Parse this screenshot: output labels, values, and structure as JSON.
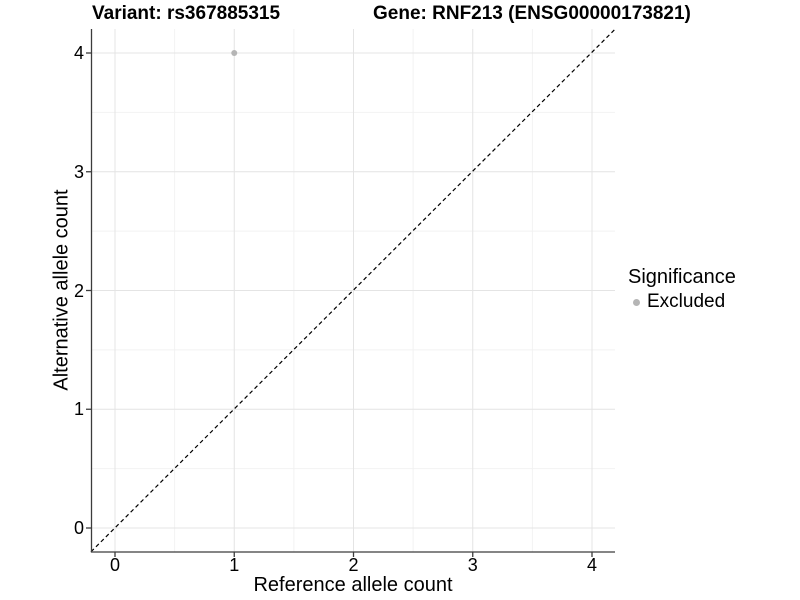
{
  "figure": {
    "title_variant": "Variant: rs367885315",
    "title_gene": "Gene: RNF213 (ENSG00000173821)"
  },
  "axes": {
    "x": {
      "title": "Reference allele count",
      "ticks": [
        "0",
        "1",
        "2",
        "3",
        "4"
      ]
    },
    "y": {
      "title": "Alternative allele count",
      "ticks": [
        "0",
        "1",
        "2",
        "3",
        "4"
      ]
    }
  },
  "legend": {
    "title": "Significance",
    "items": [
      {
        "label": "Excluded",
        "color": "#b5b5b5"
      }
    ]
  },
  "colors": {
    "point": "#b5b5b5",
    "grid_major": "#e4e4e4",
    "grid_minor": "#f2f2f2",
    "axis_line": "#3c3c3c",
    "identity_line": "#000000"
  },
  "chart_data": {
    "type": "scatter",
    "title_left": "Variant: rs367885315",
    "title_right": "Gene: RNF213 (ENSG00000173821)",
    "xlabel": "Reference allele count",
    "ylabel": "Alternative allele count",
    "xlim": [
      -0.2,
      4.2
    ],
    "ylim": [
      -0.2,
      4.2
    ],
    "x_ticks": [
      0,
      1,
      2,
      3,
      4
    ],
    "y_ticks": [
      0,
      1,
      2,
      3,
      4
    ],
    "grid": true,
    "legend": {
      "title": "Significance",
      "position": "right",
      "entries": [
        {
          "label": "Excluded",
          "color": "#b5b5b5"
        }
      ]
    },
    "series": [
      {
        "name": "Excluded",
        "color": "#b5b5b5",
        "points": [
          {
            "x": 1,
            "y": 4
          }
        ]
      }
    ],
    "reference_line": {
      "type": "identity y=x",
      "style": "dashed",
      "color": "#000000"
    }
  }
}
